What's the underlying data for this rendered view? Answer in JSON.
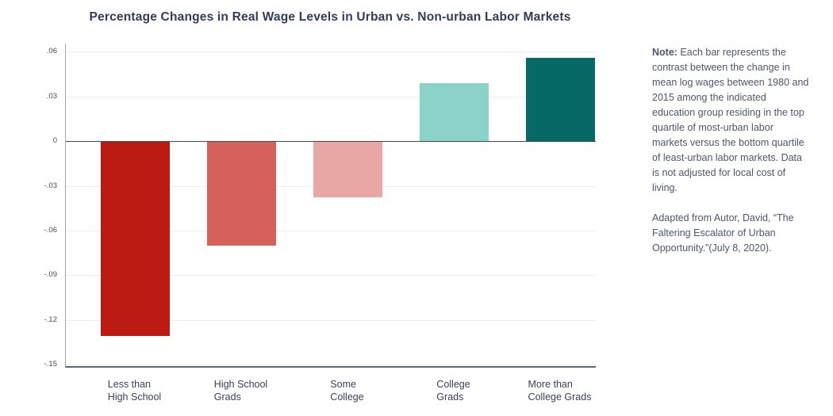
{
  "chart_data": {
    "type": "bar",
    "title": "Percentage Changes in Real Wage Levels in Urban vs. Non-urban Labor Markets",
    "categories": [
      "Less than\nHigh School",
      "High School\nGrads",
      "Some\nCollege",
      "College\nGrads",
      "More than\nCollege Grads"
    ],
    "values": [
      -0.131,
      -0.07,
      -0.038,
      0.039,
      0.056
    ],
    "bar_colors": [
      "#bb1b10",
      "#d4615a",
      "#e8a6a4",
      "#8bd2c8",
      "#056a66"
    ],
    "yticks": [
      0.06,
      0.03,
      0,
      -0.03,
      -0.06,
      -0.09,
      -0.12,
      -0.15
    ],
    "ytick_labels": [
      ".06",
      ".03",
      "0",
      "-.03",
      "-.06",
      "-.09",
      "-.12",
      "-.15"
    ],
    "ylim": [
      -0.151,
      0.0655
    ],
    "grid": true,
    "legend": "none",
    "xlabel": "",
    "ylabel": ""
  },
  "note": {
    "label": "Note:",
    "body": " Each bar represents the contrast between the change in mean log wages between 1980 and 2015 among the indicated education group residing in the top quartile of most-urban labor markets versus the bottom quartile of least-urban labor markets. Data is not adjusted for local cost of living.",
    "attribution": "Adapted from Autor, David, “The Faltering Escalator of Urban Opportunity.”(July 8, 2020)."
  }
}
